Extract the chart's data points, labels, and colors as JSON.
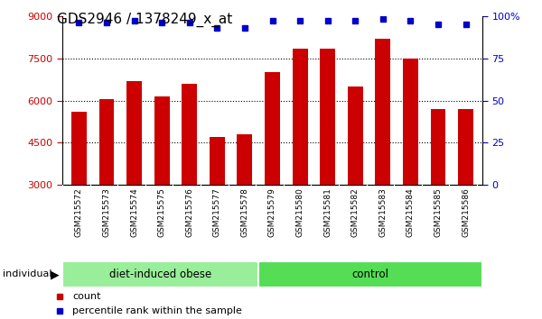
{
  "title": "GDS2946 / 1378249_x_at",
  "samples": [
    "GSM215572",
    "GSM215573",
    "GSM215574",
    "GSM215575",
    "GSM215576",
    "GSM215577",
    "GSM215578",
    "GSM215579",
    "GSM215580",
    "GSM215581",
    "GSM215582",
    "GSM215583",
    "GSM215584",
    "GSM215585",
    "GSM215586"
  ],
  "bar_values": [
    5600,
    6050,
    6700,
    6150,
    6600,
    4700,
    4800,
    7000,
    7850,
    7850,
    6500,
    8200,
    7500,
    5700,
    5700
  ],
  "percentile_values": [
    96,
    96,
    97,
    96,
    96,
    93,
    93,
    97,
    97,
    97,
    97,
    98,
    97,
    95,
    95
  ],
  "ylim": [
    3000,
    9000
  ],
  "y2lim": [
    0,
    100
  ],
  "yticks": [
    3000,
    4500,
    6000,
    7500,
    9000
  ],
  "y2ticks": [
    0,
    25,
    50,
    75,
    100
  ],
  "bar_color": "#cc0000",
  "dot_color": "#0000cc",
  "group1_label": "diet-induced obese",
  "group2_label": "control",
  "group1_color": "#99ee99",
  "group2_color": "#55dd55",
  "group1_count": 7,
  "group2_count": 8,
  "legend_count_label": "count",
  "legend_pct_label": "percentile rank within the sample",
  "individual_label": "individual",
  "sample_bg_color": "#cccccc",
  "plot_bg_color": "#ffffff",
  "title_fontsize": 11,
  "axis_label_color_left": "#cc0000",
  "axis_label_color_right": "#0000cc"
}
